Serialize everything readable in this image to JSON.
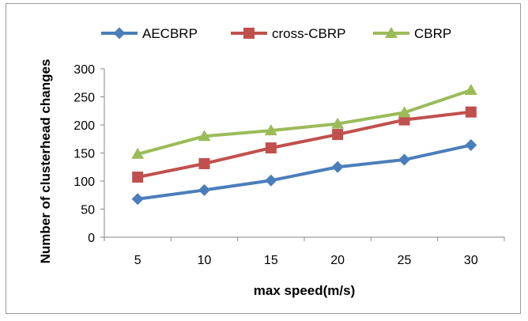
{
  "chart_data": {
    "type": "line",
    "xlabel": "max speed(m/s)",
    "ylabel": "Number of clusterhead changes",
    "categories": [
      "5",
      "10",
      "15",
      "20",
      "25",
      "30"
    ],
    "ylim": [
      0,
      300
    ],
    "yticks": [
      0,
      50,
      100,
      150,
      200,
      250,
      300
    ],
    "grid": false,
    "legend_position": "top",
    "series": [
      {
        "name": "AECBRP",
        "values": [
          68,
          84,
          101,
          125,
          138,
          164
        ],
        "color": "#4a7ebb",
        "marker": "diamond"
      },
      {
        "name": "cross-CBRP",
        "values": [
          107,
          131,
          159,
          183,
          209,
          223
        ],
        "color": "#c0504d",
        "marker": "square"
      },
      {
        "name": "CBRP",
        "values": [
          148,
          180,
          190,
          202,
          222,
          262
        ],
        "color": "#9bbb59",
        "marker": "triangle"
      }
    ]
  }
}
